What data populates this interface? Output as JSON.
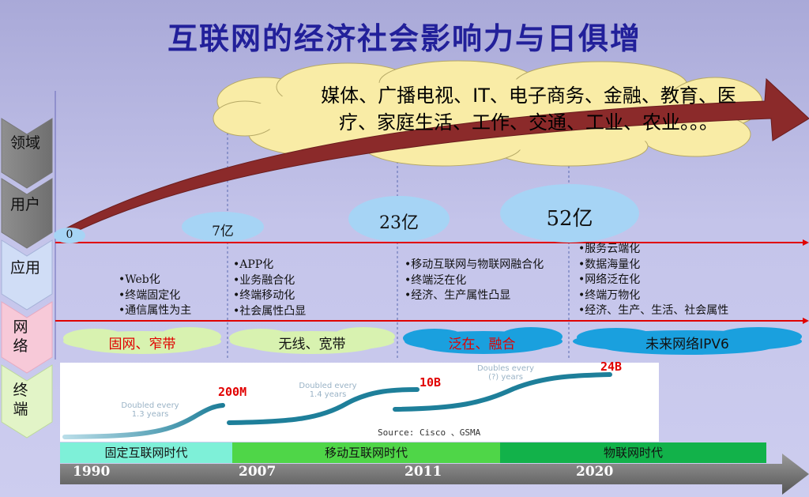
{
  "title": "互联网的经济社会影响力与日俱增",
  "side_labels": [
    "领域",
    "用户",
    "应用",
    "网络",
    "终端"
  ],
  "domains_text": "媒体、广播电视、IT、电子商务、金融、教育、医疗、家庭生活、工作、交通、工业、农业。。。",
  "users": {
    "v0": "0",
    "v1": "7亿",
    "v2": "23亿",
    "v3": "52亿"
  },
  "applications": [
    [
      "•Web化",
      "•终端固定化",
      "•通信属性为主"
    ],
    [
      "•APP化",
      "•业务融合化",
      "•终端移动化",
      "•社会属性凸显"
    ],
    [
      "•移动互联网与物联网融合化",
      "•终端泛在化",
      "•经济、生产属性凸显"
    ],
    [
      "•服务云端化",
      "•数据海量化",
      "•网络泛在化",
      "•终端万物化",
      "•经济、生产、生活、社会属性"
    ]
  ],
  "networks": [
    "固网、窄带",
    "无线、宽带",
    "泛在、融合",
    "未来网络IPV6"
  ],
  "terminals": {
    "values": [
      "200M",
      "10B",
      "24B"
    ],
    "doubling": [
      "Doubled every\n1.3 years",
      "Doubled every\n1.4 years",
      "Doubles every\n(?) years"
    ],
    "source": "Source: Cisco 、GSMA"
  },
  "eras": [
    "固定互联网时代",
    "移动互联网时代",
    "物联网时代"
  ],
  "years": [
    "1990",
    "2007",
    "2011",
    "2020"
  ],
  "colors": {
    "title": "#22209a",
    "arrow": "#8b2a2a",
    "red_line": "#e00000",
    "era1": "#7ef0d8",
    "era2": "#4fd648",
    "era3": "#12b24a",
    "network_green_cloud": "#d8f2b0",
    "network_blue_cloud": "#1aa0de"
  }
}
